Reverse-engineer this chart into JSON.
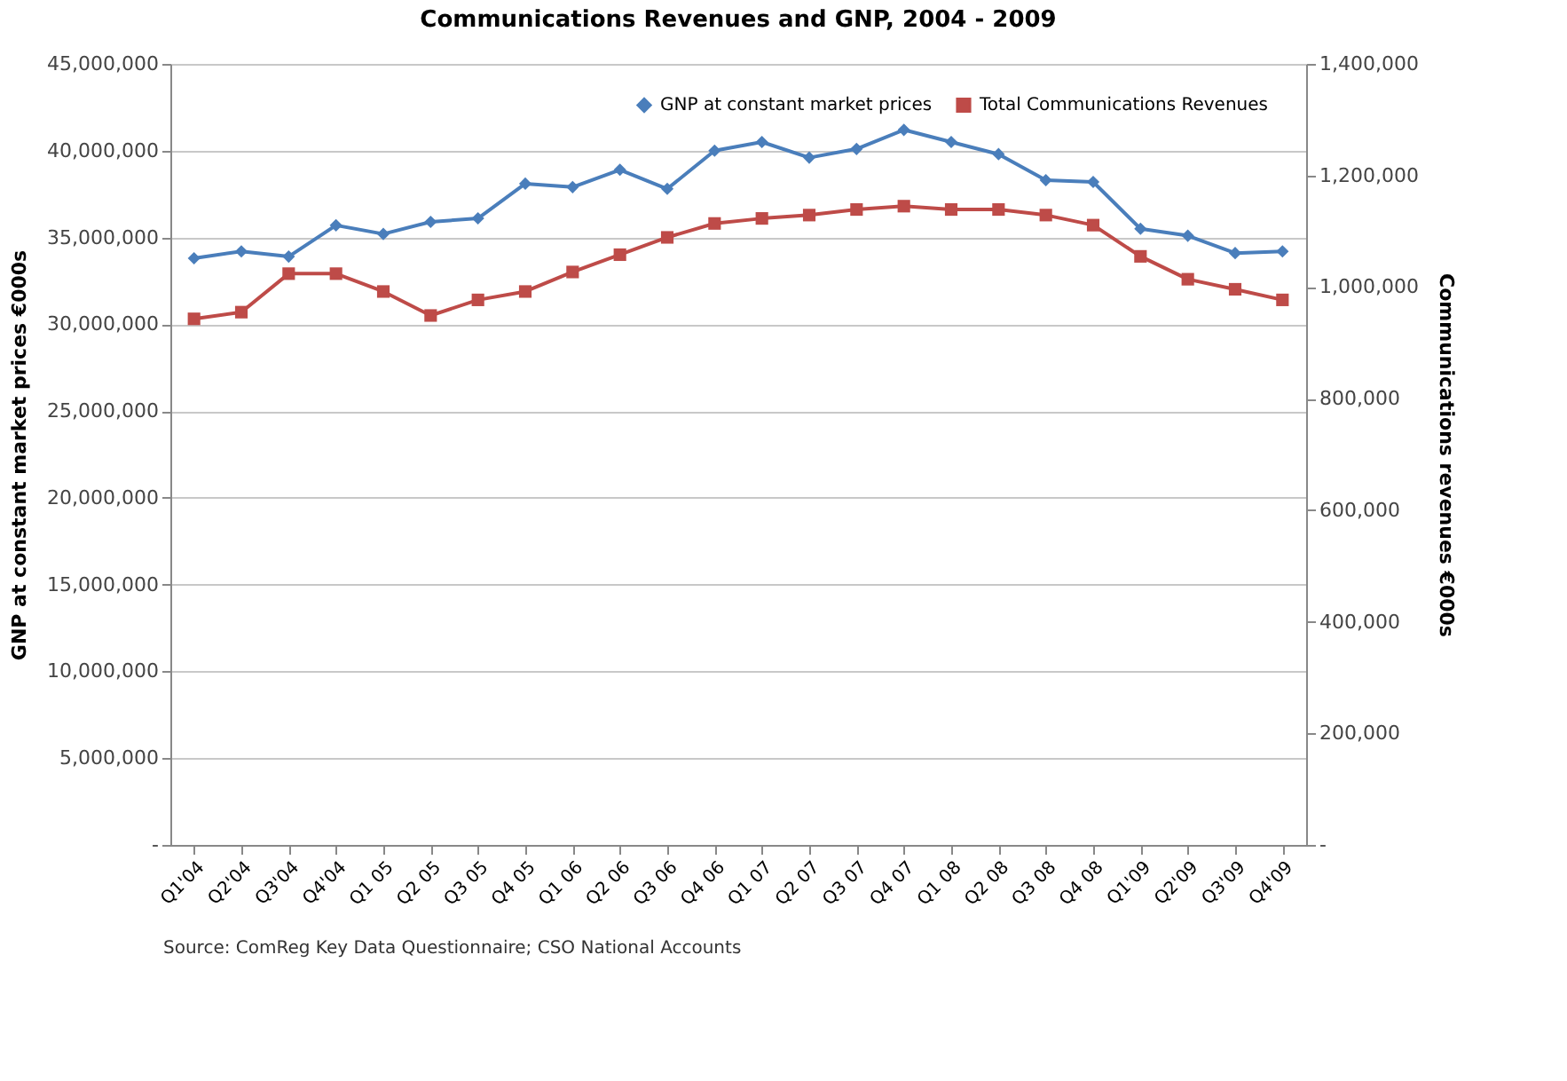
{
  "chart_data": {
    "type": "line",
    "title": "Communications Revenues and GNP, 2004 - 2009",
    "ylabel": "GNP at constant market prices €000s",
    "y2label": "Communications revenues €000s",
    "categories": [
      "Q1'04",
      "Q2'04",
      "Q3'04",
      "Q4'04",
      "Q1 05",
      "Q2 05",
      "Q3 05",
      "Q4 05",
      "Q1 06",
      "Q2 06",
      "Q3 06",
      "Q4 06",
      "Q1 07",
      "Q2 07",
      "Q3 07",
      "Q4 07",
      "Q1 08",
      "Q2 08",
      "Q3 08",
      "Q4 08",
      "Q1'09",
      "Q2'09",
      "Q3'09",
      "Q4'09"
    ],
    "series": [
      {
        "name": "GNP at constant market prices",
        "color": "#4a7ebb",
        "marker": "diamond",
        "values": [
          33800000,
          34200000,
          33900000,
          35700000,
          35200000,
          35900000,
          36100000,
          38100000,
          37900000,
          38900000,
          37800000,
          40000000,
          40500000,
          39600000,
          40100000,
          41200000,
          40500000,
          39800000,
          38300000,
          38200000,
          35500000,
          35100000,
          34100000,
          34200000
        ]
      },
      {
        "name": "Total Communications  Revenues",
        "color": "#be4b48",
        "marker": "square",
        "axis": "y2",
        "values": [
          943000,
          955000,
          1024000,
          1024000,
          992000,
          949000,
          977000,
          992000,
          1027000,
          1058000,
          1089000,
          1114000,
          1123000,
          1129000,
          1139000,
          1145000,
          1139000,
          1139000,
          1129000,
          1111000,
          1055000,
          1014000,
          996000,
          977000
        ]
      }
    ],
    "ylim": [
      0,
      45000000
    ],
    "yticks": [
      {
        "value": 0,
        "label": "-"
      },
      {
        "value": 5000000,
        "label": "5,000,000"
      },
      {
        "value": 10000000,
        "label": "10,000,000"
      },
      {
        "value": 15000000,
        "label": "15,000,000"
      },
      {
        "value": 20000000,
        "label": "20,000,000"
      },
      {
        "value": 25000000,
        "label": "25,000,000"
      },
      {
        "value": 30000000,
        "label": "30,000,000"
      },
      {
        "value": 35000000,
        "label": "35,000,000"
      },
      {
        "value": 40000000,
        "label": "40,000,000"
      },
      {
        "value": 45000000,
        "label": "45,000,000"
      }
    ],
    "y2lim": [
      0,
      1400000
    ],
    "y2ticks": [
      {
        "value": 0,
        "label": "-"
      },
      {
        "value": 200000,
        "label": "200,000"
      },
      {
        "value": 400000,
        "label": "400,000"
      },
      {
        "value": 600000,
        "label": "600,000"
      },
      {
        "value": 800000,
        "label": "800,000"
      },
      {
        "value": 1000000,
        "label": "1,000,000"
      },
      {
        "value": 1200000,
        "label": "1,200,000"
      },
      {
        "value": 1400000,
        "label": "1,400,000"
      }
    ],
    "grid": "y",
    "legend": "top right",
    "line_style": "solid",
    "annotations": [
      "Source: ComReg Key Data Questionnaire; CSO National Accounts"
    ]
  }
}
